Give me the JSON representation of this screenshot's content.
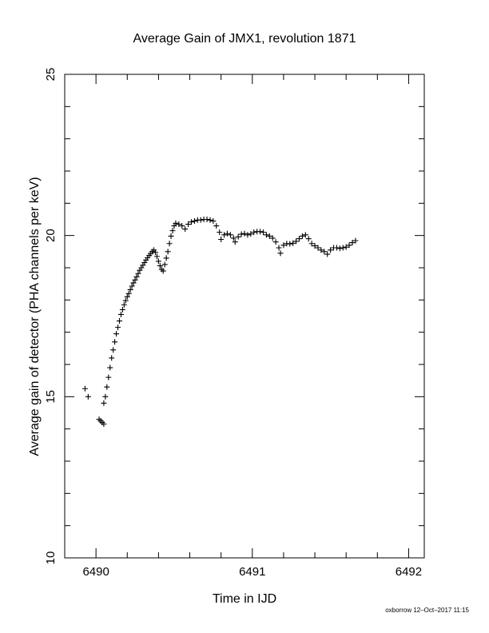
{
  "chart_data": {
    "type": "scatter",
    "title": "Average Gain of JMX1, revolution 1871",
    "xlabel": "Time in IJD",
    "ylabel": "Average gain of detector (PHA channels per keV)",
    "xlim": [
      6489.8,
      6492.1
    ],
    "ylim": [
      10,
      25
    ],
    "xticks": [
      "6490",
      "6491",
      "6492"
    ],
    "yticks": [
      "10",
      "15",
      "20",
      "25"
    ],
    "marker": "plus",
    "color": "#000000",
    "grid": false,
    "footer": "oxborrow 12–Oct–2017 11:15",
    "points": [
      [
        6489.93,
        15.25
      ],
      [
        6489.95,
        15.0
      ],
      [
        6490.02,
        14.3
      ],
      [
        6490.03,
        14.25
      ],
      [
        6490.04,
        14.2
      ],
      [
        6490.05,
        14.15
      ],
      [
        6490.05,
        14.8
      ],
      [
        6490.06,
        15.0
      ],
      [
        6490.07,
        15.3
      ],
      [
        6490.08,
        15.6
      ],
      [
        6490.09,
        15.9
      ],
      [
        6490.1,
        16.2
      ],
      [
        6490.11,
        16.45
      ],
      [
        6490.12,
        16.7
      ],
      [
        6490.13,
        16.95
      ],
      [
        6490.14,
        17.15
      ],
      [
        6490.15,
        17.35
      ],
      [
        6490.16,
        17.55
      ],
      [
        6490.17,
        17.7
      ],
      [
        6490.18,
        17.85
      ],
      [
        6490.19,
        17.98
      ],
      [
        6490.2,
        18.1
      ],
      [
        6490.21,
        18.2
      ],
      [
        6490.22,
        18.32
      ],
      [
        6490.23,
        18.43
      ],
      [
        6490.24,
        18.53
      ],
      [
        6490.25,
        18.62
      ],
      [
        6490.26,
        18.72
      ],
      [
        6490.27,
        18.82
      ],
      [
        6490.28,
        18.92
      ],
      [
        6490.29,
        19.0
      ],
      [
        6490.3,
        19.08
      ],
      [
        6490.31,
        19.16
      ],
      [
        6490.32,
        19.24
      ],
      [
        6490.33,
        19.31
      ],
      [
        6490.34,
        19.38
      ],
      [
        6490.35,
        19.44
      ],
      [
        6490.36,
        19.5
      ],
      [
        6490.37,
        19.55
      ],
      [
        6490.38,
        19.48
      ],
      [
        6490.39,
        19.35
      ],
      [
        6490.4,
        19.2
      ],
      [
        6490.41,
        19.06
      ],
      [
        6490.42,
        18.95
      ],
      [
        6490.43,
        18.9
      ],
      [
        6490.44,
        19.1
      ],
      [
        6490.45,
        19.3
      ],
      [
        6490.46,
        19.5
      ],
      [
        6490.47,
        19.75
      ],
      [
        6490.48,
        19.98
      ],
      [
        6490.49,
        20.15
      ],
      [
        6490.5,
        20.3
      ],
      [
        6490.51,
        20.38
      ],
      [
        6490.53,
        20.35
      ],
      [
        6490.55,
        20.3
      ],
      [
        6490.57,
        20.2
      ],
      [
        6490.59,
        20.35
      ],
      [
        6490.61,
        20.42
      ],
      [
        6490.63,
        20.45
      ],
      [
        6490.65,
        20.48
      ],
      [
        6490.67,
        20.48
      ],
      [
        6490.69,
        20.5
      ],
      [
        6490.71,
        20.5
      ],
      [
        6490.73,
        20.48
      ],
      [
        6490.75,
        20.45
      ],
      [
        6490.77,
        20.3
      ],
      [
        6490.79,
        20.1
      ],
      [
        6490.8,
        19.88
      ],
      [
        6490.82,
        20.02
      ],
      [
        6490.84,
        20.06
      ],
      [
        6490.86,
        20.02
      ],
      [
        6490.88,
        19.92
      ],
      [
        6490.89,
        19.8
      ],
      [
        6490.91,
        19.96
      ],
      [
        6490.93,
        20.04
      ],
      [
        6490.95,
        20.06
      ],
      [
        6490.97,
        20.02
      ],
      [
        6490.99,
        20.05
      ],
      [
        6491.01,
        20.1
      ],
      [
        6491.03,
        20.12
      ],
      [
        6491.05,
        20.12
      ],
      [
        6491.07,
        20.1
      ],
      [
        6491.09,
        20.02
      ],
      [
        6491.11,
        19.98
      ],
      [
        6491.13,
        19.92
      ],
      [
        6491.15,
        19.8
      ],
      [
        6491.17,
        19.62
      ],
      [
        6491.18,
        19.45
      ],
      [
        6491.2,
        19.7
      ],
      [
        6491.22,
        19.75
      ],
      [
        6491.24,
        19.74
      ],
      [
        6491.26,
        19.76
      ],
      [
        6491.28,
        19.82
      ],
      [
        6491.3,
        19.9
      ],
      [
        6491.32,
        19.98
      ],
      [
        6491.34,
        20.02
      ],
      [
        6491.36,
        19.9
      ],
      [
        6491.38,
        19.75
      ],
      [
        6491.4,
        19.68
      ],
      [
        6491.42,
        19.62
      ],
      [
        6491.44,
        19.55
      ],
      [
        6491.46,
        19.5
      ],
      [
        6491.48,
        19.42
      ],
      [
        6491.5,
        19.55
      ],
      [
        6491.52,
        19.62
      ],
      [
        6491.54,
        19.62
      ],
      [
        6491.56,
        19.6
      ],
      [
        6491.58,
        19.62
      ],
      [
        6491.6,
        19.64
      ],
      [
        6491.62,
        19.7
      ],
      [
        6491.64,
        19.78
      ],
      [
        6491.66,
        19.84
      ]
    ]
  }
}
